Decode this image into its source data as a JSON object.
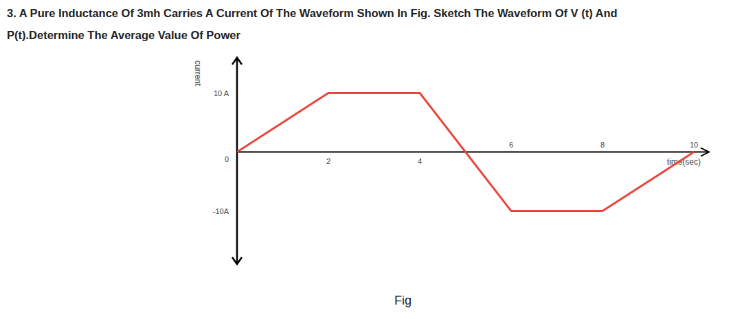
{
  "question": [
    "3. A Pure Inductance Of 3mh Carries A Current Of The Waveform Shown In Fig. Sketch The Waveform Of V (t) And",
    "P(t).Determine The Average Value Of Power"
  ],
  "caption": "Fig",
  "chart_data": {
    "type": "line",
    "x_label": "time(sec)",
    "y_label": "current",
    "x": [
      0,
      2,
      4,
      6,
      8,
      10
    ],
    "values": [
      0,
      10,
      10,
      -10,
      -10,
      0
    ],
    "color": "#e8453c",
    "xlim": [
      0,
      10.3
    ],
    "xticks": [
      2,
      4,
      6,
      8,
      10
    ],
    "ylim": [
      -19,
      16
    ],
    "yticks": [
      {
        "value": -10,
        "label": "-10A"
      },
      0,
      {
        "value": 10,
        "label": "10 A"
      }
    ],
    "grid": false
  }
}
